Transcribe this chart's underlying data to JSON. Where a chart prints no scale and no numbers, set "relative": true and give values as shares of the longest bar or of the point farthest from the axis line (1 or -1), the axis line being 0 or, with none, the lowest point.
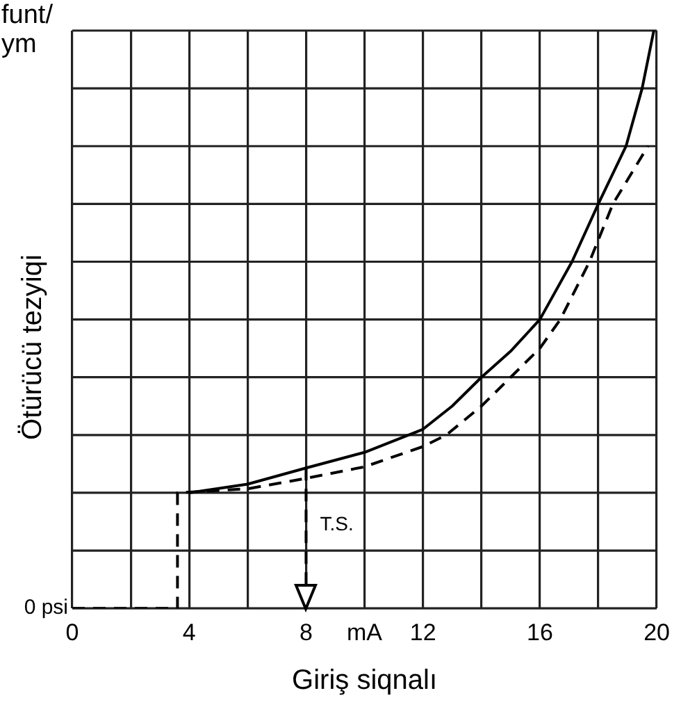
{
  "chart_data": {
    "type": "line",
    "relative": true,
    "xlabel": "Giriş siqnalı",
    "ylabel": "Ötürücü tezyiqi",
    "xlim": [
      0,
      20
    ],
    "xticks": [
      0,
      {
        "value": 2,
        "label": null
      },
      4,
      {
        "value": 6,
        "label": null
      },
      8,
      {
        "value": 10,
        "label": "mA"
      },
      12,
      {
        "value": 14,
        "label": null
      },
      16,
      {
        "value": 18,
        "label": null
      },
      20
    ],
    "grid": true,
    "legend": false,
    "marker": "none",
    "annotations": [
      "funt/ym",
      "0 psi"
    ],
    "ref_lines": [
      {
        "axis": "x",
        "value": 8,
        "label": "T.S.",
        "color": "#000000",
        "line_style": "dashed"
      }
    ],
    "series": [
      {
        "color": "#000000",
        "line_style": "solid",
        "x": [
          4,
          6,
          8,
          10,
          12,
          13,
          14,
          15,
          16,
          17.1,
          18,
          18.95,
          19.5,
          19.9
        ],
        "values": [
          0.2,
          0.215,
          0.243,
          0.27,
          0.31,
          0.35,
          0.4,
          0.445,
          0.5,
          0.6,
          0.7,
          0.8,
          0.9,
          1.0
        ]
      },
      {
        "color": "#000000",
        "line_style": "dashed",
        "x": [
          0,
          3.6,
          3.6,
          6,
          8,
          10,
          12,
          12.8,
          14,
          15,
          16,
          16.7,
          17.7,
          18.5,
          19.7
        ],
        "values": [
          0,
          0,
          0.2,
          0.207,
          0.225,
          0.245,
          0.28,
          0.3,
          0.35,
          0.4,
          0.45,
          0.5,
          0.6,
          0.7,
          0.8
        ]
      }
    ]
  }
}
